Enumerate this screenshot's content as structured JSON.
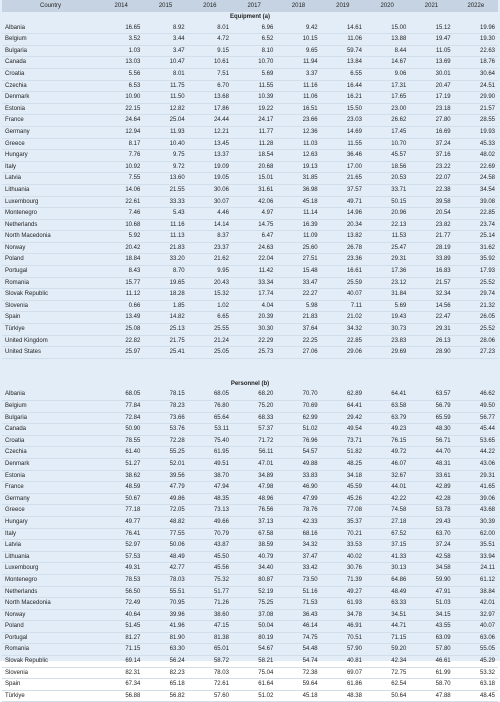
{
  "table": {
    "columns": [
      "Country",
      "2014",
      "2015",
      "2016",
      "2017",
      "2018",
      "2019",
      "2020",
      "2021",
      "2022e"
    ],
    "sections": [
      {
        "title": "Equipment (a)",
        "rows": [
          [
            "Albania",
            "16.65",
            "8.92",
            "8.01",
            "6.96",
            "9.42",
            "14.61",
            "15.00",
            "15.12",
            "19.96"
          ],
          [
            "Belgium",
            "3.52",
            "3.44",
            "4.72",
            "6.52",
            "10.15",
            "11.06",
            "13.88",
            "19.47",
            "19.30"
          ],
          [
            "Bulgaria",
            "1.03",
            "3.47",
            "9.15",
            "8.10",
            "9.65",
            "59.74",
            "8.44",
            "11.05",
            "22.63"
          ],
          [
            "Canada",
            "13.03",
            "10.47",
            "10.61",
            "10.70",
            "11.94",
            "13.84",
            "14.67",
            "13.69",
            "18.76"
          ],
          [
            "Croatia",
            "5.56",
            "8.01",
            "7.51",
            "5.69",
            "3.37",
            "6.55",
            "9.06",
            "30.01",
            "30.64"
          ],
          [
            "Czechia",
            "6.53",
            "11.75",
            "6.70",
            "11.55",
            "11.16",
            "16.44",
            "17.31",
            "20.47",
            "24.51"
          ],
          [
            "Denmark",
            "10.90",
            "11.50",
            "13.68",
            "10.39",
            "11.06",
            "16.21",
            "17.65",
            "17.19",
            "29.90"
          ],
          [
            "Estonia",
            "22.15",
            "12.82",
            "17.86",
            "19.22",
            "16.51",
            "15.50",
            "23.00",
            "23.18",
            "21.57"
          ],
          [
            "France",
            "24.64",
            "25.04",
            "24.44",
            "24.17",
            "23.66",
            "23.03",
            "26.62",
            "27.80",
            "28.55"
          ],
          [
            "Germany",
            "12.94",
            "11.93",
            "12.21",
            "11.77",
            "12.36",
            "14.69",
            "17.45",
            "16.69",
            "19.93"
          ],
          [
            "Greece",
            "8.17",
            "10.40",
            "13.45",
            "11.28",
            "11.03",
            "11.55",
            "10.70",
            "37.24",
            "45.33"
          ],
          [
            "Hungary",
            "7.76",
            "9.75",
            "13.37",
            "18.54",
            "12.63",
            "36.46",
            "45.57",
            "37.16",
            "48.02"
          ],
          [
            "Italy",
            "10.92",
            "9.72",
            "19.09",
            "20.68",
            "19.13",
            "17.00",
            "18.56",
            "23.22",
            "22.69"
          ],
          [
            "Latvia",
            "7.55",
            "13.60",
            "19.05",
            "15.01",
            "31.85",
            "21.65",
            "20.53",
            "22.07",
            "24.58"
          ],
          [
            "Lithuania",
            "14.06",
            "21.55",
            "30.06",
            "31.61",
            "36.98",
            "37.57",
            "33.71",
            "22.38",
            "34.54"
          ],
          [
            "Luxembourg",
            "22.61",
            "33.33",
            "30.07",
            "42.06",
            "45.18",
            "49.71",
            "50.15",
            "39.58",
            "39.08"
          ],
          [
            "Montenegro",
            "7.46",
            "5.43",
            "4.46",
            "4.97",
            "11.14",
            "14.96",
            "20.96",
            "20.54",
            "22.85"
          ],
          [
            "Netherlands",
            "10.68",
            "11.16",
            "14.14",
            "14.75",
            "16.39",
            "20.34",
            "22.13",
            "23.82",
            "23.74"
          ],
          [
            "North Macedonia",
            "5.92",
            "11.13",
            "8.37",
            "6.47",
            "11.09",
            "13.82",
            "11.53",
            "21.77",
            "25.14"
          ],
          [
            "Norway",
            "20.42",
            "21.83",
            "23.37",
            "24.63",
            "25.60",
            "26.78",
            "25.47",
            "28.19",
            "31.62"
          ],
          [
            "Poland",
            "18.84",
            "33.20",
            "21.62",
            "22.04",
            "27.51",
            "23.36",
            "29.31",
            "33.89",
            "35.92"
          ],
          [
            "Portugal",
            "8.43",
            "8.70",
            "9.95",
            "11.42",
            "15.48",
            "16.61",
            "17.36",
            "16.83",
            "17.93"
          ],
          [
            "Romania",
            "15.77",
            "19.65",
            "20.43",
            "33.34",
            "33.47",
            "25.59",
            "23.12",
            "21.57",
            "25.52"
          ],
          [
            "Slovak Republic",
            "11.12",
            "18.28",
            "15.32",
            "17.74",
            "22.27",
            "40.07",
            "31.84",
            "32.34",
            "29.74"
          ],
          [
            "Slovenia",
            "0.66",
            "1.85",
            "1.02",
            "4.04",
            "5.98",
            "7.11",
            "5.69",
            "14.56",
            "21.32"
          ],
          [
            "Spain",
            "13.49",
            "14.82",
            "6.65",
            "20.39",
            "21.83",
            "21.02",
            "19.43",
            "22.47",
            "26.05"
          ],
          [
            "Türkiye",
            "25.08",
            "25.13",
            "25.55",
            "30.30",
            "37.64",
            "34.32",
            "30.73",
            "29.31",
            "25.52"
          ],
          [
            "United Kingdom",
            "22.82",
            "21.75",
            "21.24",
            "22.29",
            "22.25",
            "22.85",
            "23.83",
            "26.13",
            "28.06"
          ],
          [
            "United States",
            "25.97",
            "25.41",
            "25.05",
            "25.73",
            "27.06",
            "29.06",
            "29.69",
            "28.90",
            "27.23"
          ]
        ]
      },
      {
        "title": "Personnel (b)",
        "rows": [
          [
            "Albania",
            "68.05",
            "78.15",
            "68.05",
            "68.20",
            "70.70",
            "62.89",
            "64.41",
            "63.57",
            "46.62"
          ],
          [
            "Belgium",
            "77.84",
            "78.23",
            "76.80",
            "75.20",
            "70.69",
            "64.41",
            "63.58",
            "56.79",
            "49.50"
          ],
          [
            "Bulgaria",
            "72.84",
            "73.66",
            "65.64",
            "68.33",
            "62.99",
            "29.42",
            "63.79",
            "65.59",
            "56.77"
          ],
          [
            "Canada",
            "50.90",
            "53.76",
            "53.11",
            "57.37",
            "51.02",
            "49.54",
            "49.23",
            "48.30",
            "45.44"
          ],
          [
            "Croatia",
            "78.55",
            "72.28",
            "75.40",
            "71.72",
            "76.96",
            "73.71",
            "76.15",
            "56.71",
            "53.65"
          ],
          [
            "Czechia",
            "61.40",
            "55.25",
            "61.95",
            "56.11",
            "54.57",
            "51.82",
            "49.72",
            "44.70",
            "44.22"
          ],
          [
            "Denmark",
            "51.27",
            "52.01",
            "49.51",
            "47.01",
            "49.88",
            "48.25",
            "46.07",
            "48.31",
            "43.06"
          ],
          [
            "Estonia",
            "38.62",
            "39.56",
            "38.70",
            "34.89",
            "33.83",
            "34.18",
            "32.67",
            "33.61",
            "29.31"
          ],
          [
            "France",
            "48.59",
            "47.79",
            "47.94",
            "47.98",
            "46.90",
            "45.59",
            "44.01",
            "42.89",
            "41.65"
          ],
          [
            "Germany",
            "50.67",
            "49.86",
            "48.35",
            "48.96",
            "47.99",
            "45.26",
            "42.22",
            "42.28",
            "39.06"
          ],
          [
            "Greece",
            "77.18",
            "72.05",
            "73.13",
            "76.56",
            "78.76",
            "77.08",
            "74.58",
            "53.78",
            "43.68"
          ],
          [
            "Hungary",
            "49.77",
            "48.82",
            "49.66",
            "37.13",
            "42.33",
            "35.37",
            "27.18",
            "29.43",
            "30.39"
          ],
          [
            "Italy",
            "76.41",
            "77.55",
            "70.79",
            "67.58",
            "68.16",
            "70.21",
            "67.52",
            "63.70",
            "62.00"
          ],
          [
            "Latvia",
            "52.97",
            "50.06",
            "43.87",
            "38.59",
            "34.32",
            "33.53",
            "37.15",
            "37.24",
            "35.51"
          ],
          [
            "Lithuania",
            "57.53",
            "48.49",
            "45.50",
            "40.79",
            "37.47",
            "40.02",
            "41.33",
            "42.58",
            "33.94"
          ],
          [
            "Luxembourg",
            "49.31",
            "42.77",
            "45.56",
            "34.40",
            "33.42",
            "30.76",
            "30.13",
            "34.58",
            "24.11"
          ],
          [
            "Montenegro",
            "78.53",
            "78.03",
            "75.32",
            "80.87",
            "73.50",
            "71.39",
            "64.86",
            "59.90",
            "61.12"
          ],
          [
            "Netherlands",
            "56.50",
            "55.51",
            "51.77",
            "52.19",
            "51.16",
            "49.27",
            "48.49",
            "47.91",
            "38.84"
          ],
          [
            "North Macedonia",
            "72.49",
            "70.95",
            "71.26",
            "75.25",
            "71.53",
            "61.93",
            "63.33",
            "51.03",
            "42.01"
          ],
          [
            "Norway",
            "40.64",
            "39.96",
            "38.60",
            "37.08",
            "36.43",
            "34.78",
            "34.51",
            "34.15",
            "32.97"
          ],
          [
            "Poland",
            "51.45",
            "41.96",
            "47.15",
            "50.04",
            "46.14",
            "46.91",
            "44.71",
            "43.55",
            "40.07"
          ],
          [
            "Portugal",
            "81.27",
            "81.90",
            "81.38",
            "80.19",
            "74.75",
            "70.51",
            "71.15",
            "63.09",
            "63.06"
          ],
          [
            "Romania",
            "71.15",
            "63.30",
            "65.01",
            "54.67",
            "54.48",
            "57.90",
            "59.20",
            "57.80",
            "55.05"
          ],
          [
            "Slovak Republic",
            "69.14",
            "56.24",
            "58.72",
            "58.21",
            "54.74",
            "40.81",
            "42.34",
            "46.61",
            "45.29"
          ],
          [
            "Slovenia",
            "82.31",
            "82.23",
            "78.03",
            "75.04",
            "72.38",
            "69.07",
            "72.75",
            "61.99",
            "53.32"
          ],
          [
            "Spain",
            "67.34",
            "65.18",
            "72.61",
            "61.64",
            "59.64",
            "61.86",
            "62.54",
            "58.70",
            "63.18"
          ],
          [
            "Türkiye",
            "56.88",
            "56.82",
            "57.60",
            "51.02",
            "45.18",
            "48.38",
            "50.64",
            "47.88",
            "48.45"
          ]
        ]
      }
    ]
  }
}
